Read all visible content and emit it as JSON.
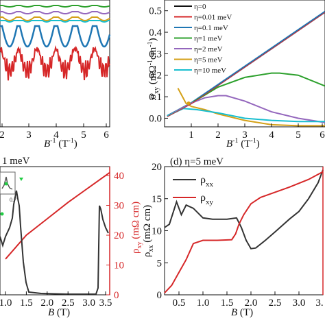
{
  "chart_data": [
    {
      "panel": "top-left",
      "type": "line",
      "x_ticks": [
        "2",
        "3",
        "4",
        "5",
        "6"
      ],
      "xlabel_italic": "B",
      "xlabel_rest": "-1 (T-1)",
      "xlim": [
        2,
        6
      ],
      "colors": [
        "#2ca02c",
        "#9467bd",
        "#d4a017",
        "#1f77b4",
        "#17becf",
        "#d62728"
      ]
    },
    {
      "panel": "top-right",
      "type": "line",
      "y_ticks": [
        "0.0",
        "0.1",
        "0.2",
        "0.3",
        "0.4",
        "0.5"
      ],
      "x_ticks": [
        "1",
        "2",
        "3",
        "4",
        "5",
        "6"
      ],
      "xlim": [
        0,
        6
      ],
      "ylim": [
        -0.04,
        0.55
      ],
      "ylabel": "σxy (mΩ-1cm-1)",
      "xlabel_italic": "B",
      "xlabel_rest": "-1 (T-1)",
      "legend": [
        {
          "label": "η=0",
          "color": "#111111"
        },
        {
          "label": "η=0.01 meV",
          "color": "#d62728"
        },
        {
          "label": "η=0.1 meV",
          "color": "#1f77b4"
        },
        {
          "label": "η=1 meV",
          "color": "#2ca02c"
        },
        {
          "label": "η=2 meV",
          "color": "#9467bd"
        },
        {
          "label": "η=5 meV",
          "color": "#d4a017"
        },
        {
          "label": "η=10 meV",
          "color": "#17becf"
        }
      ],
      "series": [
        {
          "name": "η=0.1 meV",
          "x": [
            0.1,
            1,
            2,
            3,
            4,
            5,
            6
          ],
          "y": [
            0.01,
            0.07,
            0.155,
            0.24,
            0.325,
            0.41,
            0.495
          ]
        },
        {
          "name": "η=1 meV",
          "x": [
            0.1,
            1,
            2,
            3,
            4,
            4.3,
            5,
            6
          ],
          "y": [
            0.01,
            0.07,
            0.145,
            0.19,
            0.21,
            0.21,
            0.2,
            0.15
          ]
        },
        {
          "name": "η=2 meV",
          "x": [
            0.1,
            1,
            1.5,
            2,
            2.3,
            3,
            4,
            5,
            6
          ],
          "y": [
            0.01,
            0.07,
            0.095,
            0.105,
            0.105,
            0.08,
            0.03,
            0.0,
            -0.02
          ]
        },
        {
          "name": "η=5 meV",
          "x": [
            0.5,
            0.8,
            1,
            1.5,
            2,
            3,
            4,
            5,
            6
          ],
          "y": [
            0.14,
            0.07,
            0.055,
            0.04,
            0.02,
            -0.01,
            -0.03,
            -0.035,
            -0.035
          ]
        },
        {
          "name": "η=10 meV",
          "x": [
            0.1,
            0.7,
            1.2,
            2,
            3,
            4,
            5,
            6
          ],
          "y": [
            0.01,
            0.045,
            0.04,
            0.025,
            0.0,
            -0.01,
            -0.015,
            -0.015
          ]
        }
      ]
    },
    {
      "panel": "bottom-left",
      "type": "line",
      "title": "1 meV",
      "x_ticks": [
        "1.0",
        "1.5",
        "2.0",
        "2.5",
        "3.0",
        "3.5"
      ],
      "y_right_ticks": [
        "0",
        "10",
        "20",
        "30",
        "40"
      ],
      "xlim": [
        1,
        3.5
      ],
      "y_right_lim": [
        0,
        43
      ],
      "y_right_label": "ρxy (mΩ cm)",
      "xlabel_italic": "B",
      "xlabel_rest": " (T)",
      "inset_tick": "0.7",
      "series": [
        {
          "name": "ρxy",
          "color": "#d62728",
          "x": [
            1,
            1.5,
            2,
            2.5,
            3,
            3.5
          ],
          "y": [
            12,
            20,
            25.5,
            31,
            36,
            41
          ]
        }
      ]
    },
    {
      "panel": "bottom-right",
      "type": "line",
      "title": "(d) η=5 meV",
      "y_ticks": [
        "0",
        "5",
        "10",
        "15",
        "20"
      ],
      "x_ticks": [
        "0.5",
        "1.0",
        "1.5",
        "2.0",
        "2.5",
        "3.0",
        "3."
      ],
      "xlim": [
        0.2,
        3.5
      ],
      "ylim": [
        0,
        20
      ],
      "ylabel": "ρxx (mΩ cm)",
      "xlabel_italic": "B",
      "xlabel_rest": " (T)",
      "legend": [
        {
          "label": "ρxx",
          "color": "#333333"
        },
        {
          "label": "ρxy",
          "color": "#d62728"
        }
      ],
      "series": [
        {
          "name": "ρxx",
          "x": [
            0.2,
            0.3,
            0.45,
            0.55,
            0.65,
            0.8,
            1.0,
            1.2,
            1.5,
            1.7,
            1.8,
            1.9,
            2.0,
            2.1,
            2.3,
            2.5,
            2.8,
            3.0,
            3.2,
            3.4,
            3.5
          ],
          "y": [
            10.5,
            11,
            14.5,
            12.5,
            14,
            13.5,
            12,
            11.8,
            11.8,
            12,
            10.5,
            8.5,
            7.2,
            7.3,
            8.5,
            9.8,
            11.8,
            13,
            15,
            17.5,
            19.5
          ]
        },
        {
          "name": "ρxy",
          "x": [
            0.2,
            0.35,
            0.5,
            0.65,
            0.8,
            1.0,
            1.3,
            1.6,
            1.68,
            1.75,
            1.85,
            2.0,
            2.2,
            2.5,
            2.8,
            3.0,
            3.2,
            3.5
          ],
          "y": [
            0.3,
            1.5,
            3.5,
            5.5,
            8,
            8.5,
            8.5,
            8.6,
            9.5,
            11,
            12.5,
            14.2,
            15.2,
            16,
            16.8,
            17.4,
            18,
            19.2
          ]
        }
      ]
    }
  ]
}
